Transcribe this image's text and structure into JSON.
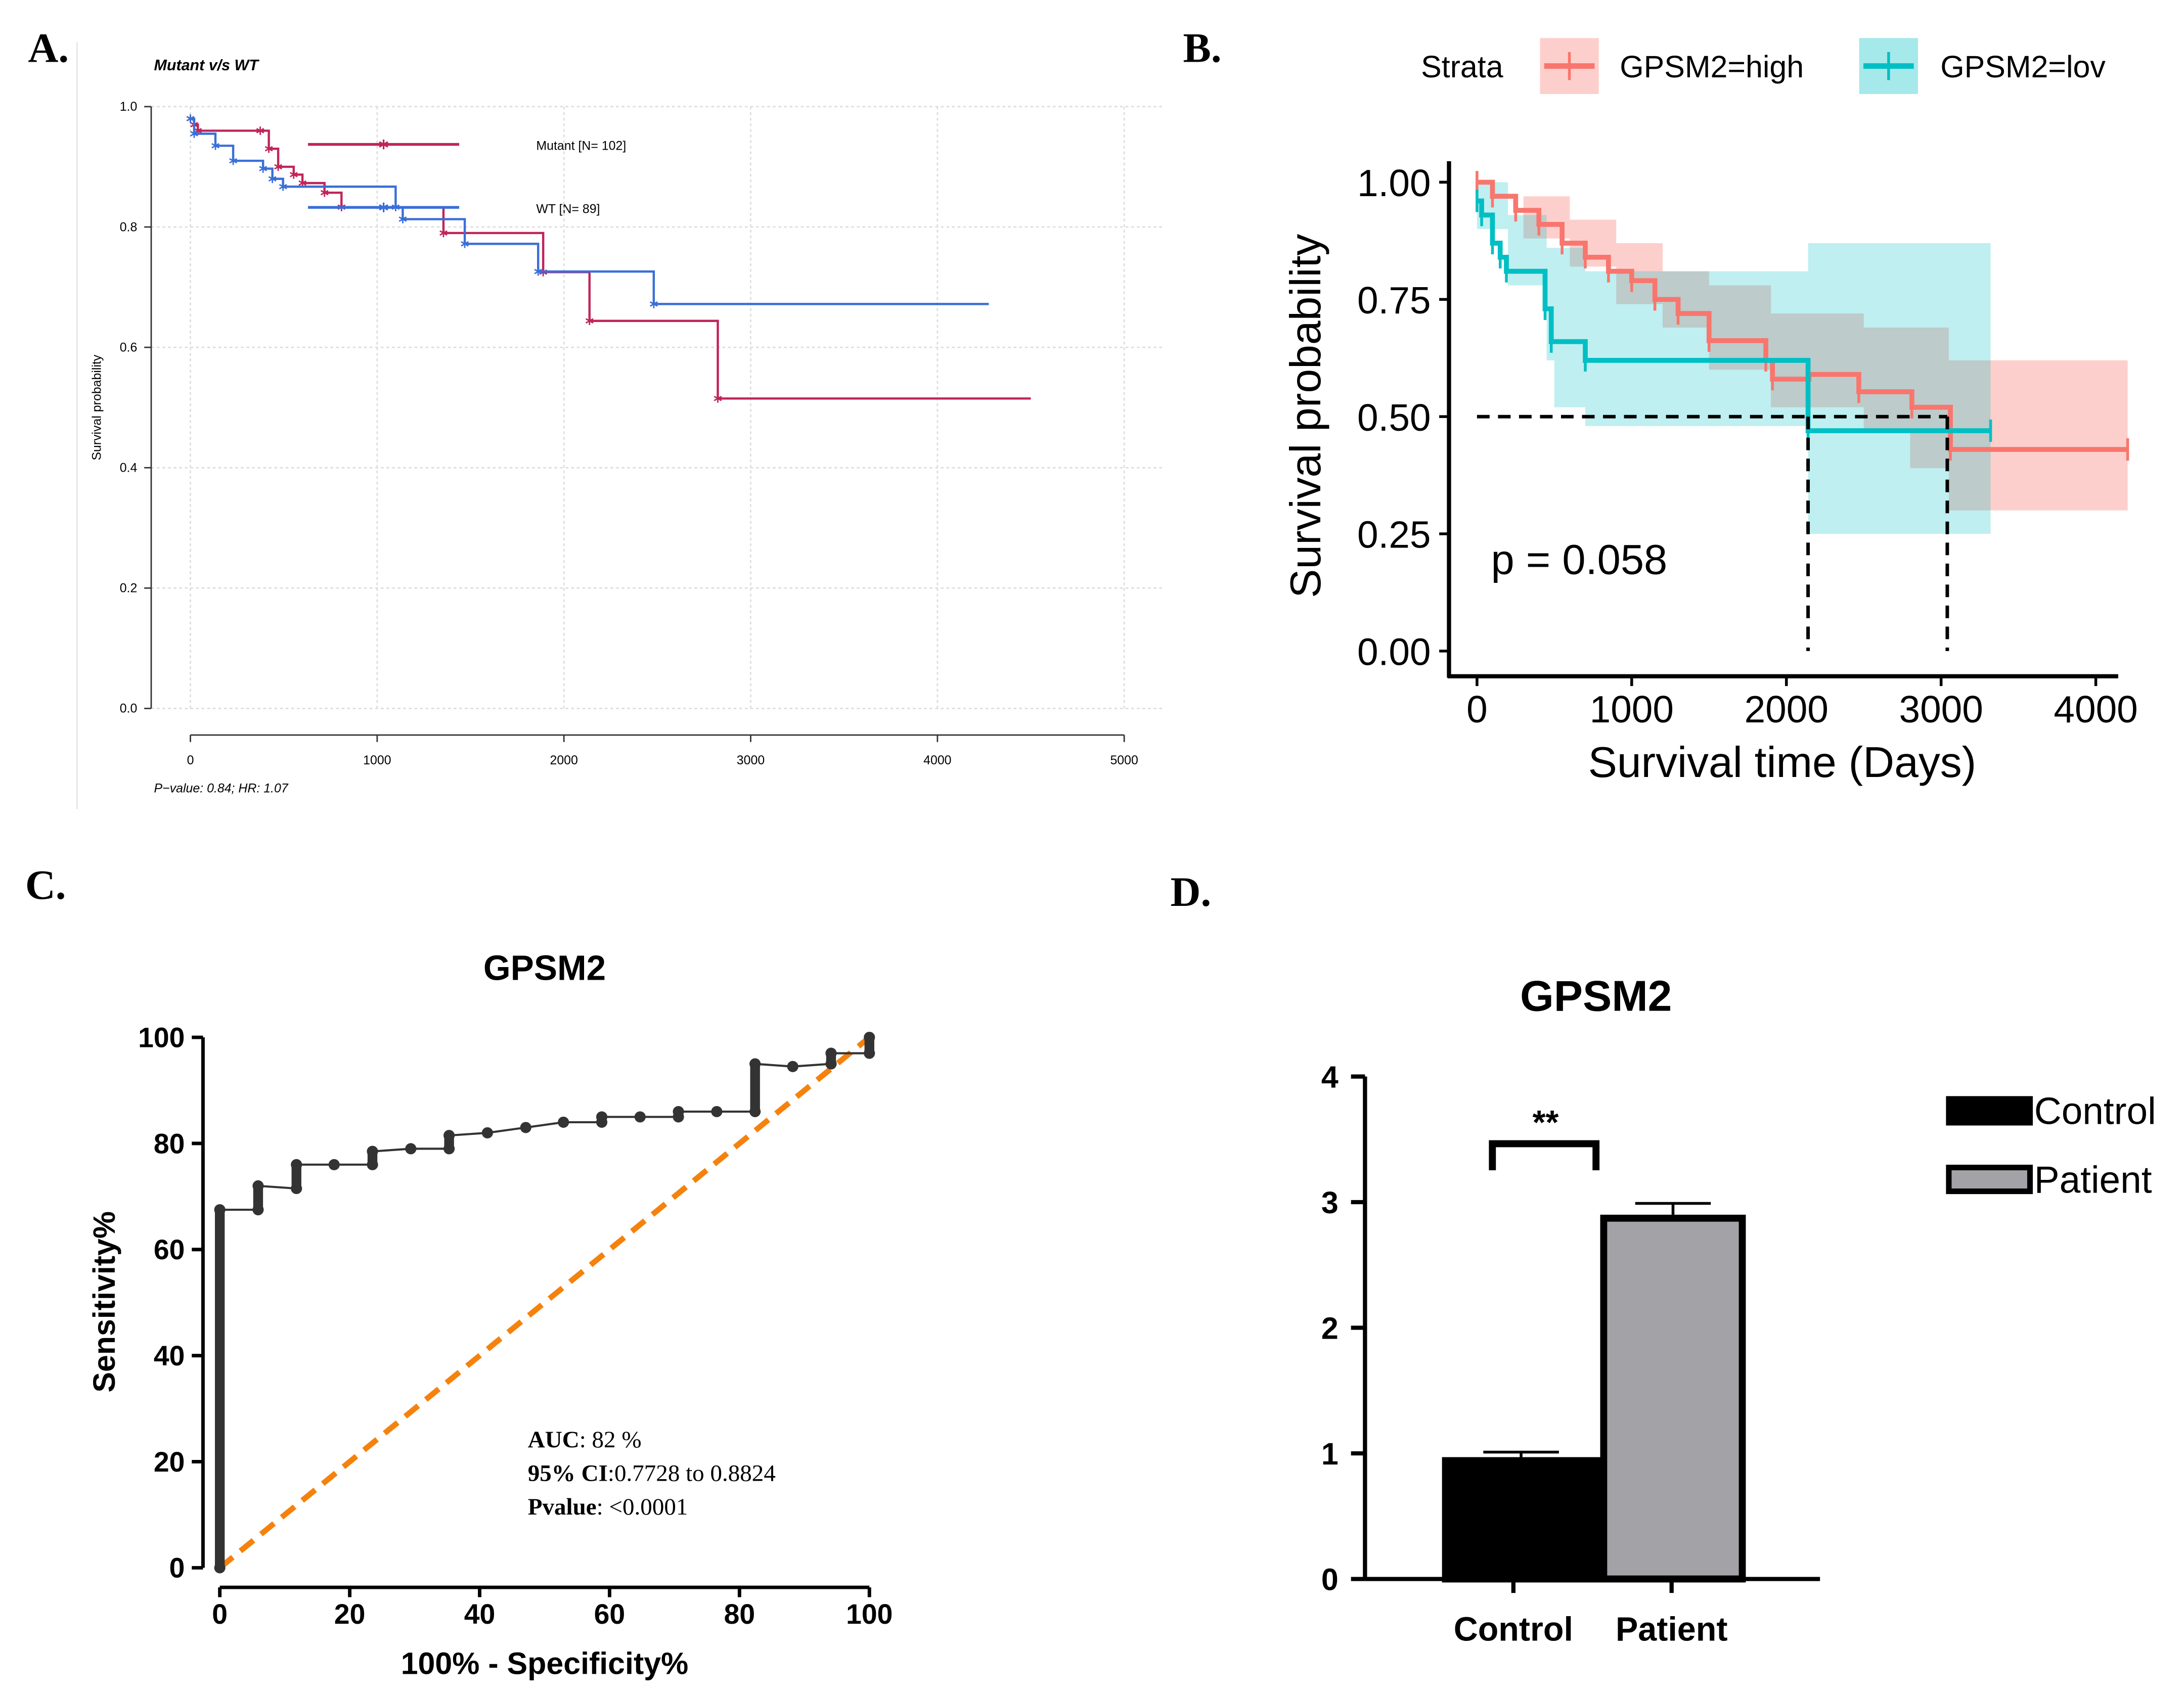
{
  "panels": {
    "a": "A.",
    "b": "B.",
    "c": "C.",
    "d": "D."
  },
  "chart_data": [
    {
      "type": "line",
      "title": "Mutant v/s WT",
      "ylabel": "Survival probability",
      "footnote": "P−value: 0.84; HR: 1.07",
      "xlim": [
        0,
        5000
      ],
      "ylim": [
        0,
        1
      ],
      "xticks": [
        0,
        1000,
        2000,
        3000,
        4000,
        5000
      ],
      "yticks": [
        0.0,
        0.2,
        0.4,
        0.6,
        0.8,
        1.0
      ],
      "grid": true,
      "legend_position": "top-center",
      "series": [
        {
          "name": "Mutant [N= 102]",
          "color": "#c0245a",
          "points": [
            [
              0,
              0.98
            ],
            [
              20,
              0.97
            ],
            [
              40,
              0.96
            ],
            [
              374,
              0.96
            ],
            [
              420,
              0.93
            ],
            [
              470,
              0.9
            ],
            [
              553,
              0.887
            ],
            [
              600,
              0.873
            ],
            [
              718,
              0.857
            ],
            [
              809,
              0.833
            ],
            [
              1355,
              0.79
            ],
            [
              1889,
              0.725
            ],
            [
              2137,
              0.644
            ],
            [
              2824,
              0.515
            ],
            [
              4500,
              0.515
            ]
          ]
        },
        {
          "name": "WT [N= 89]",
          "color": "#3a6fd8",
          "points": [
            [
              0,
              0.98
            ],
            [
              20,
              0.955
            ],
            [
              134,
              0.935
            ],
            [
              229,
              0.91
            ],
            [
              389,
              0.897
            ],
            [
              439,
              0.88
            ],
            [
              496,
              0.867
            ],
            [
              1099,
              0.833
            ],
            [
              1137,
              0.813
            ],
            [
              1469,
              0.772
            ],
            [
              1862,
              0.726
            ],
            [
              2481,
              0.672
            ],
            [
              4275,
              0.672
            ]
          ]
        }
      ]
    },
    {
      "type": "line",
      "legend_title": "Strata",
      "xlabel": "Survival time (Days)",
      "ylabel": "Survival probability",
      "annotation": "p = 0.058",
      "xlim": [
        0,
        4200
      ],
      "ylim": [
        0,
        1
      ],
      "xticks": [
        0,
        1000,
        2000,
        3000,
        4000
      ],
      "yticks": [
        "0.00",
        "0.25",
        "0.50",
        "0.75",
        "1.00"
      ],
      "legend_position": "top",
      "median_lines": {
        "y": 0.5,
        "x": [
          2140,
          3040
        ]
      },
      "series": [
        {
          "name": "GPSM2=high",
          "color": "#f8766d",
          "points": [
            [
              0,
              1
            ],
            [
              100,
              0.97
            ],
            [
              250,
              0.94
            ],
            [
              400,
              0.91
            ],
            [
              550,
              0.87
            ],
            [
              700,
              0.84
            ],
            [
              850,
              0.81
            ],
            [
              1000,
              0.79
            ],
            [
              1150,
              0.75
            ],
            [
              1300,
              0.72
            ],
            [
              1500,
              0.662
            ],
            [
              1867,
              0.62
            ],
            [
              1910,
              0.58
            ],
            [
              2146,
              0.59
            ],
            [
              2468,
              0.553
            ],
            [
              2811,
              0.52
            ],
            [
              3060,
              0.43
            ],
            [
              4206,
              0.43
            ]
          ],
          "ci_upper": [
            [
              0,
              1
            ],
            [
              300,
              0.97
            ],
            [
              600,
              0.92
            ],
            [
              900,
              0.87
            ],
            [
              1200,
              0.81
            ],
            [
              1500,
              0.78
            ],
            [
              1900,
              0.72
            ],
            [
              2500,
              0.69
            ],
            [
              3050,
              0.62
            ],
            [
              4206,
              0.62
            ]
          ],
          "ci_lower": [
            [
              0,
              1
            ],
            [
              300,
              0.88
            ],
            [
              600,
              0.82
            ],
            [
              900,
              0.74
            ],
            [
              1200,
              0.69
            ],
            [
              1500,
              0.6
            ],
            [
              1900,
              0.52
            ],
            [
              2500,
              0.47
            ],
            [
              2800,
              0.39
            ],
            [
              3050,
              0.3
            ],
            [
              4206,
              0.3
            ]
          ]
        },
        {
          "name": "GPSM2=lov",
          "color": "#00bfc4",
          "points": [
            [
              0,
              0.96
            ],
            [
              30,
              0.93
            ],
            [
              100,
              0.87
            ],
            [
              150,
              0.84
            ],
            [
              190,
              0.81
            ],
            [
              440,
              0.73
            ],
            [
              480,
              0.66
            ],
            [
              700,
              0.62
            ],
            [
              2140,
              0.47
            ],
            [
              3320,
              0.47
            ]
          ],
          "ci_upper": [
            [
              0,
              1
            ],
            [
              200,
              0.93
            ],
            [
              450,
              0.86
            ],
            [
              700,
              0.81
            ],
            [
              2140,
              0.87
            ],
            [
              3320,
              0.87
            ]
          ],
          "ci_lower": [
            [
              0,
              0.9
            ],
            [
              200,
              0.78
            ],
            [
              450,
              0.62
            ],
            [
              500,
              0.52
            ],
            [
              700,
              0.48
            ],
            [
              2140,
              0.25
            ],
            [
              3320,
              0.25
            ]
          ]
        }
      ]
    },
    {
      "type": "line",
      "title": "GPSM2",
      "xlabel": "100% - Specificity%",
      "ylabel": "Sensitivity%",
      "xlim": [
        0,
        100
      ],
      "ylim": [
        0,
        100
      ],
      "xticks": [
        0,
        20,
        40,
        60,
        80,
        100
      ],
      "yticks": [
        0,
        20,
        40,
        60,
        80,
        100
      ],
      "reference_line_color": "#f5820d",
      "roc_points": [
        [
          0,
          0
        ],
        [
          0,
          67.5
        ],
        [
          5.9,
          67.5
        ],
        [
          5.9,
          72
        ],
        [
          11.8,
          71.5
        ],
        [
          11.8,
          76
        ],
        [
          17.6,
          76
        ],
        [
          23.5,
          76
        ],
        [
          23.5,
          78.5
        ],
        [
          29.4,
          79
        ],
        [
          35.3,
          79
        ],
        [
          35.3,
          81.5
        ],
        [
          41.2,
          82
        ],
        [
          47.1,
          83
        ],
        [
          52.9,
          84
        ],
        [
          58.8,
          84
        ],
        [
          58.8,
          85
        ],
        [
          64.7,
          85
        ],
        [
          70.6,
          85
        ],
        [
          70.6,
          86
        ],
        [
          76.5,
          86
        ],
        [
          82.4,
          86
        ],
        [
          82.4,
          95
        ],
        [
          88.2,
          94.5
        ],
        [
          94.1,
          95
        ],
        [
          94.1,
          97
        ],
        [
          100,
          97
        ],
        [
          100,
          100
        ]
      ],
      "stats": [
        {
          "label": "AUC",
          "value": ": 82 %"
        },
        {
          "label": "95% CI",
          "value": ":0.7728 to 0.8824"
        },
        {
          "label": "Pvalue",
          "value": ":  <0.0001"
        }
      ]
    },
    {
      "type": "bar",
      "title": "GPSM2",
      "categories": [
        "Control",
        "Patient"
      ],
      "values": [
        0.97,
        2.9
      ],
      "errors": [
        0.04,
        0.09
      ],
      "colors": [
        "#000000",
        "#a3a3a7"
      ],
      "ylim": [
        0,
        4
      ],
      "yticks": [
        0,
        1,
        2,
        3,
        4
      ],
      "significance": "**",
      "legend": [
        "Control",
        "Patient"
      ],
      "legend_position": "right"
    }
  ]
}
